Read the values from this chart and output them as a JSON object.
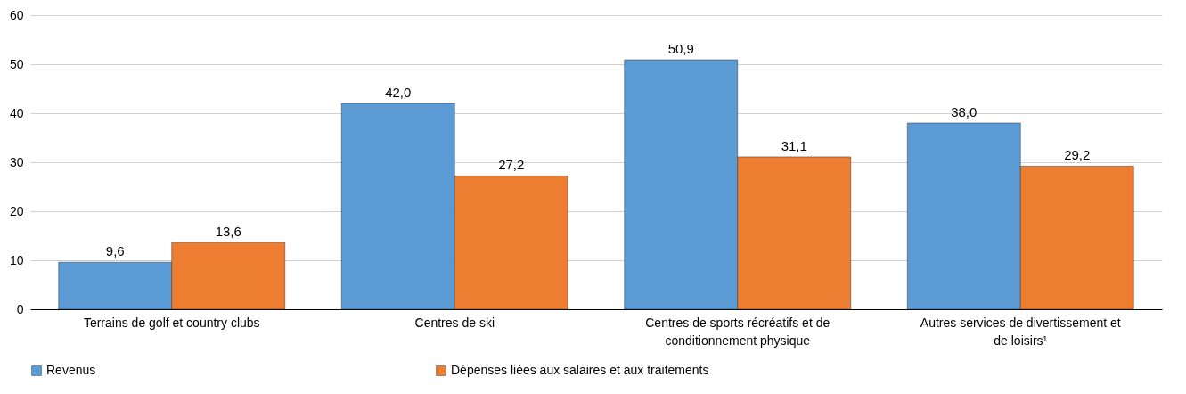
{
  "chart_data": {
    "type": "bar",
    "categories": [
      "Terrains de golf et country clubs",
      "Centres de ski",
      "Centres de sports récréatifs et de conditionnement physique",
      "Autres services de divertissement et de loisirs¹"
    ],
    "series": [
      {
        "name": "Revenus",
        "color": "#5b9bd5",
        "values": [
          9.6,
          42.0,
          50.9,
          38.0
        ],
        "value_labels": [
          "9,6",
          "42,0",
          "50,9",
          "38,0"
        ]
      },
      {
        "name": "Dépenses liées aux salaires et aux traitements",
        "color": "#ed7d31",
        "values": [
          13.6,
          27.2,
          31.1,
          29.2
        ],
        "value_labels": [
          "13,6",
          "27,2",
          "31,1",
          "29,2"
        ]
      }
    ],
    "ylim": [
      0,
      60
    ],
    "yticks": [
      0,
      10,
      20,
      30,
      40,
      50,
      60
    ],
    "grid": "y",
    "legend": "bottom"
  }
}
